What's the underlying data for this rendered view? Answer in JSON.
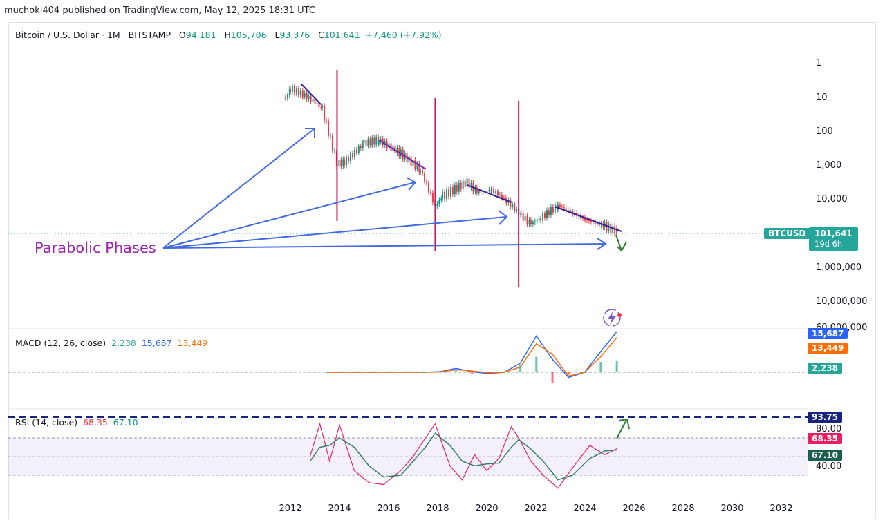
{
  "header": {
    "published": "muchoki404 published on TradingView.com, May 12, 2025 18:31 UTC"
  },
  "legend": {
    "symbol": "Bitcoin / U.S. Dollar · 1M · BITSTAMP",
    "o_label": "O",
    "o": "94,181",
    "h_label": "H",
    "h": "105,706",
    "l_label": "L",
    "l": "93,376",
    "c_label": "C",
    "c": "101,641",
    "change": "+7,460 (+7.92%)"
  },
  "macd": {
    "label": "MACD (12, 26, close)",
    "hist": "2,238",
    "macd": "15,687",
    "signal": "13,449"
  },
  "rsi": {
    "label": "RSI (14, close)",
    "value": "68.35",
    "ma": "67.10"
  },
  "annotation": {
    "text": "Parabolic Phases"
  },
  "price_tag": {
    "symbol": "BTCUSD",
    "price": "101,641",
    "countdown": "19d 6h"
  },
  "rsi_tags": {
    "upper": "93.75",
    "value": "68.35",
    "ma": "67.10"
  },
  "macd_tags": {
    "macd": "15,687",
    "signal": "13,449",
    "hist": "2,238"
  },
  "colors": {
    "up": "#089981",
    "down": "#f23645",
    "macd": "#2962ff",
    "signal": "#ff6d00",
    "rsi": "#e91e63",
    "rsi_ma": "#2e7d6f",
    "annotation": "#9c27b0",
    "arrow": "#4169e1",
    "cycle_line": "#c2185b"
  },
  "chart_data": [
    {
      "type": "line",
      "title": "Bitcoin / U.S. Dollar · 1M · BITSTAMP",
      "scale": "log-inverted",
      "y_ticks": [
        "1",
        "10",
        "100",
        "1,000",
        "10,000",
        "1,000,000",
        "10,000,000",
        "60,000,000"
      ],
      "x_ticks": [
        "2012",
        "2014",
        "2016",
        "2018",
        "2020",
        "2022",
        "2024",
        "2026",
        "2028",
        "2030",
        "2032"
      ],
      "series": [
        {
          "x": [
            2011.8,
            2012.0,
            2012.5,
            2013.0,
            2013.3,
            2013.9,
            2014.2,
            2015.0,
            2015.6,
            2016.5,
            2017.3,
            2017.9,
            2018.2,
            2019.2,
            2019.6,
            2020.2,
            2020.8,
            2021.4,
            2021.8,
            2022.2,
            2022.9,
            2023.5,
            2024.0,
            2024.8,
            2025.3
          ],
          "values": [
            12,
            6,
            9,
            15,
            25,
            1000,
            900,
            250,
            200,
            500,
            1500,
            18000,
            9000,
            3500,
            7000,
            6000,
            12000,
            35000,
            60000,
            40000,
            17000,
            28000,
            45000,
            70000,
            101641
          ]
        }
      ],
      "cycle_lines_x": [
        2013.9,
        2017.9,
        2021.3
      ],
      "annotations": [
        "Parabolic Phases"
      ]
    },
    {
      "type": "line",
      "title": "MACD (12, 26, close)",
      "series": [
        {
          "name": "MACD",
          "values": [
            0,
            0,
            0,
            0,
            0,
            0,
            0,
            200,
            1500,
            200,
            -500,
            0,
            3500,
            14000,
            5000,
            -2000,
            0,
            8000,
            15687
          ]
        },
        {
          "name": "Signal",
          "values": [
            0,
            0,
            0,
            0,
            0,
            0,
            0,
            100,
            1000,
            500,
            -200,
            0,
            2000,
            11000,
            7000,
            -1500,
            0,
            6000,
            13449
          ]
        }
      ],
      "last_values": {
        "hist": 2238,
        "macd": 15687,
        "signal": 13449
      }
    },
    {
      "type": "line",
      "title": "RSI (14, close)",
      "y_ticks": [
        "80.00",
        "40.00"
      ],
      "levels": [
        93.75,
        80,
        70,
        50,
        30
      ],
      "x": [
        2012.8,
        2013.2,
        2013.6,
        2014.0,
        2014.6,
        2015.2,
        2015.8,
        2016.5,
        2017.0,
        2017.5,
        2017.9,
        2018.5,
        2019.0,
        2019.5,
        2020.0,
        2020.5,
        2021.0,
        2021.3,
        2021.8,
        2022.3,
        2022.9,
        2023.5,
        2024.2,
        2024.8,
        2025.3
      ],
      "series": [
        {
          "name": "RSI",
          "values": [
            60,
            95,
            55,
            94,
            45,
            32,
            30,
            45,
            60,
            80,
            95,
            50,
            35,
            62,
            45,
            58,
            92,
            80,
            55,
            40,
            26,
            48,
            72,
            62,
            68.35
          ]
        },
        {
          "name": "RSI MA",
          "values": [
            55,
            70,
            72,
            80,
            70,
            50,
            38,
            40,
            55,
            70,
            85,
            72,
            55,
            50,
            52,
            53,
            70,
            78,
            68,
            55,
            35,
            40,
            58,
            66,
            67.1
          ]
        }
      ]
    }
  ]
}
